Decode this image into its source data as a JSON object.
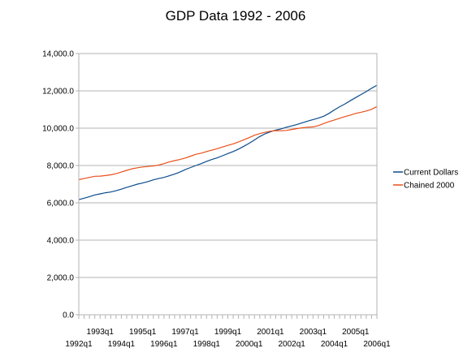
{
  "chart_data": {
    "type": "line",
    "title": "GDP Data 1992 - 2006",
    "xlabel": "",
    "ylabel": "",
    "ylim": [
      0,
      14000
    ],
    "y_ticks": [
      "0.0",
      "2,000.0",
      "4,000.0",
      "6,000.0",
      "8,000.0",
      "10,000.0",
      "12,000.0",
      "14,000.0"
    ],
    "x_tick_labels_upper": [
      "1993q1",
      "1995q1",
      "1997q1",
      "1999q1",
      "2001q1",
      "2003q1",
      "2005q1"
    ],
    "x_tick_labels_lower": [
      "1992q1",
      "1994q1",
      "1996q1",
      "1998q1",
      "2000q1",
      "2002q1",
      "2004q1",
      "2006q1"
    ],
    "grid": "horizontal",
    "legend_position": "right",
    "x": [
      "1992q1",
      "1992q2",
      "1992q3",
      "1992q4",
      "1993q1",
      "1993q2",
      "1993q3",
      "1993q4",
      "1994q1",
      "1994q2",
      "1994q3",
      "1994q4",
      "1995q1",
      "1995q2",
      "1995q3",
      "1995q4",
      "1996q1",
      "1996q2",
      "1996q3",
      "1996q4",
      "1997q1",
      "1997q2",
      "1997q3",
      "1997q4",
      "1998q1",
      "1998q2",
      "1998q3",
      "1998q4",
      "1999q1",
      "1999q2",
      "1999q3",
      "1999q4",
      "2000q1",
      "2000q2",
      "2000q3",
      "2000q4",
      "2001q1",
      "2001q2",
      "2001q3",
      "2001q4",
      "2002q1",
      "2002q2",
      "2002q3",
      "2002q4",
      "2003q1",
      "2003q2",
      "2003q3",
      "2003q4",
      "2004q1",
      "2004q2",
      "2004q3",
      "2004q4",
      "2005q1",
      "2005q2",
      "2005q3",
      "2005q4",
      "2006q1"
    ],
    "series": [
      {
        "name": "Current Dollars",
        "color": "#0b4b8c",
        "values": [
          6170,
          6250,
          6330,
          6420,
          6480,
          6540,
          6580,
          6650,
          6730,
          6830,
          6910,
          7000,
          7060,
          7140,
          7230,
          7300,
          7360,
          7450,
          7540,
          7650,
          7780,
          7890,
          8000,
          8100,
          8220,
          8320,
          8410,
          8520,
          8640,
          8750,
          8880,
          9030,
          9190,
          9370,
          9550,
          9700,
          9810,
          9900,
          9960,
          10050,
          10120,
          10200,
          10290,
          10380,
          10460,
          10540,
          10640,
          10790,
          10980,
          11150,
          11300,
          11470,
          11640,
          11800,
          11960,
          12140,
          12300
        ]
      },
      {
        "name": "Chained 2000",
        "color": "#e8501a",
        "values": [
          7240,
          7300,
          7360,
          7420,
          7430,
          7460,
          7500,
          7560,
          7650,
          7740,
          7820,
          7880,
          7920,
          7950,
          7980,
          8020,
          8100,
          8190,
          8260,
          8320,
          8400,
          8500,
          8600,
          8660,
          8750,
          8820,
          8900,
          8990,
          9080,
          9160,
          9260,
          9380,
          9490,
          9620,
          9710,
          9780,
          9840,
          9870,
          9860,
          9880,
          9930,
          9980,
          10020,
          10050,
          10070,
          10140,
          10250,
          10350,
          10440,
          10530,
          10620,
          10700,
          10790,
          10850,
          10920,
          11010,
          11160
        ]
      }
    ]
  }
}
